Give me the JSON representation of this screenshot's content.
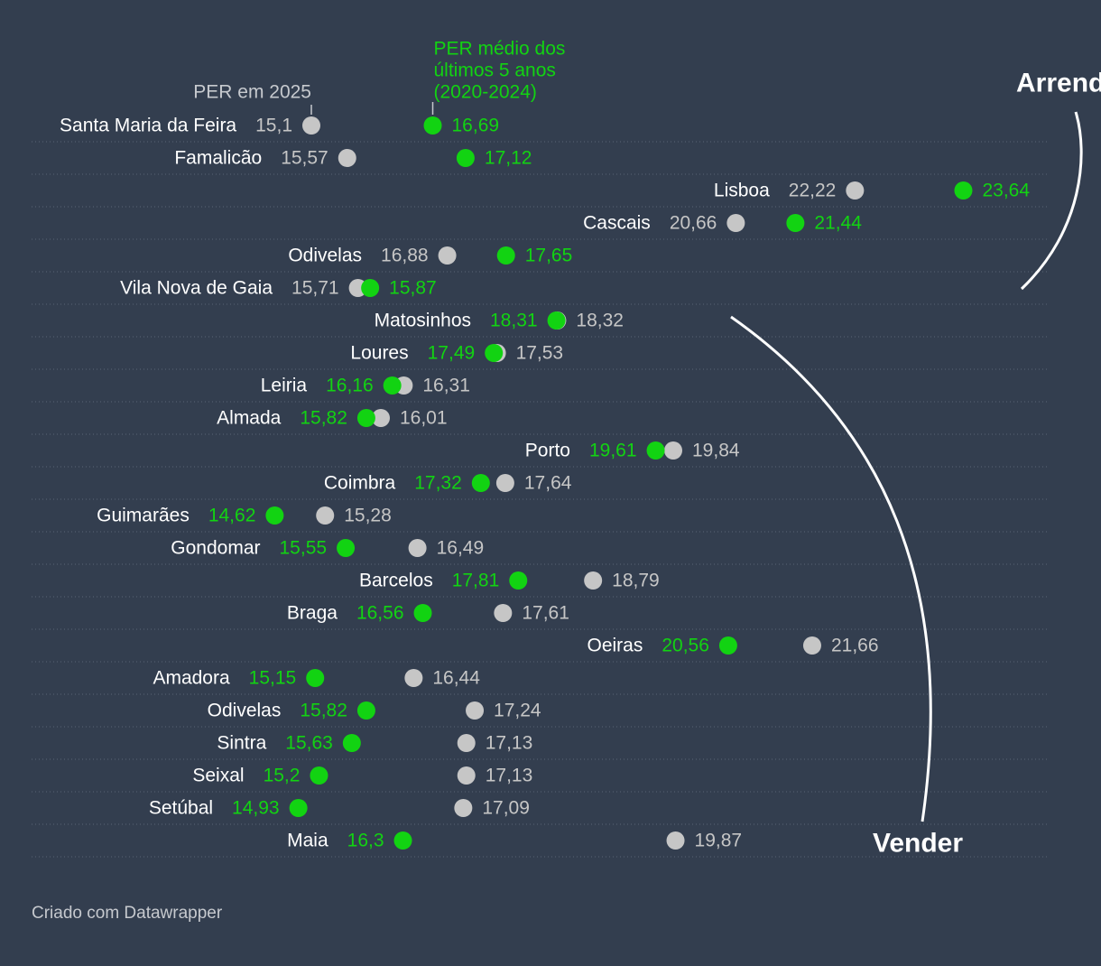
{
  "chart_data": {
    "type": "dumbbell",
    "legend": {
      "current_label": "PER em 2025",
      "average_label_lines": [
        "PER médio dos",
        "últimos 5 anos",
        "(2020-2024)"
      ]
    },
    "annotations": {
      "upper_group": "Arrendar",
      "lower_group": "Vender"
    },
    "colors": {
      "current": "#c6c6c6",
      "average": "#12d312",
      "label": "#ffffff",
      "background": "#333e4f"
    },
    "rows": [
      {
        "name": "Santa Maria da Feira",
        "current": 15.1,
        "current_label": "15,1",
        "average": 16.69,
        "average_label": "16,69"
      },
      {
        "name": "Famalicão",
        "current": 15.57,
        "current_label": "15,57",
        "average": 17.12,
        "average_label": "17,12"
      },
      {
        "name": "Lisboa",
        "current": 22.22,
        "current_label": "22,22",
        "average": 23.64,
        "average_label": "23,64"
      },
      {
        "name": "Cascais",
        "current": 20.66,
        "current_label": "20,66",
        "average": 21.44,
        "average_label": "21,44"
      },
      {
        "name": "Odivelas",
        "current": 16.88,
        "current_label": "16,88",
        "average": 17.65,
        "average_label": "17,65"
      },
      {
        "name": "Vila Nova de Gaia",
        "current": 15.71,
        "current_label": "15,71",
        "average": 15.87,
        "average_label": "15,87"
      },
      {
        "name": "Matosinhos",
        "current": 18.32,
        "current_label": "18,32",
        "average": 18.31,
        "average_label": "18,31"
      },
      {
        "name": "Loures",
        "current": 17.53,
        "current_label": "17,53",
        "average": 17.49,
        "average_label": "17,49"
      },
      {
        "name": "Leiria",
        "current": 16.31,
        "current_label": "16,31",
        "average": 16.16,
        "average_label": "16,16"
      },
      {
        "name": "Almada",
        "current": 16.01,
        "current_label": "16,01",
        "average": 15.82,
        "average_label": "15,82"
      },
      {
        "name": "Porto",
        "current": 19.84,
        "current_label": "19,84",
        "average": 19.61,
        "average_label": "19,61"
      },
      {
        "name": "Coimbra",
        "current": 17.64,
        "current_label": "17,64",
        "average": 17.32,
        "average_label": "17,32"
      },
      {
        "name": "Guimarães",
        "current": 15.28,
        "current_label": "15,28",
        "average": 14.62,
        "average_label": "14,62"
      },
      {
        "name": "Gondomar",
        "current": 16.49,
        "current_label": "16,49",
        "average": 15.55,
        "average_label": "15,55"
      },
      {
        "name": "Barcelos",
        "current": 18.79,
        "current_label": "18,79",
        "average": 17.81,
        "average_label": "17,81"
      },
      {
        "name": "Braga",
        "current": 17.61,
        "current_label": "17,61",
        "average": 16.56,
        "average_label": "16,56"
      },
      {
        "name": "Oeiras",
        "current": 21.66,
        "current_label": "21,66",
        "average": 20.56,
        "average_label": "20,56"
      },
      {
        "name": "Amadora",
        "current": 16.44,
        "current_label": "16,44",
        "average": 15.15,
        "average_label": "15,15"
      },
      {
        "name": "Odivelas",
        "current": 17.24,
        "current_label": "17,24",
        "average": 15.82,
        "average_label": "15,82"
      },
      {
        "name": "Sintra",
        "current": 17.13,
        "current_label": "17,13",
        "average": 15.63,
        "average_label": "15,63"
      },
      {
        "name": "Seixal",
        "current": 17.13,
        "current_label": "17,13",
        "average": 15.2,
        "average_label": "15,2"
      },
      {
        "name": "Setúbal",
        "current": 17.09,
        "current_label": "17,09",
        "average": 14.93,
        "average_label": "14,93"
      },
      {
        "name": "Maia",
        "current": 19.87,
        "current_label": "19,87",
        "average": 16.3,
        "average_label": "16,3"
      }
    ]
  },
  "footer": {
    "credit": "Criado com Datawrapper"
  }
}
